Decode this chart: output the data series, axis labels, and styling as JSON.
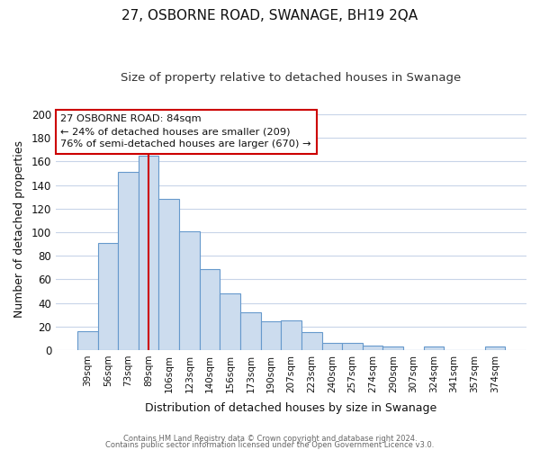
{
  "title": "27, OSBORNE ROAD, SWANAGE, BH19 2QA",
  "subtitle": "Size of property relative to detached houses in Swanage",
  "xlabel": "Distribution of detached houses by size in Swanage",
  "ylabel": "Number of detached properties",
  "bar_labels": [
    "39sqm",
    "56sqm",
    "73sqm",
    "89sqm",
    "106sqm",
    "123sqm",
    "140sqm",
    "156sqm",
    "173sqm",
    "190sqm",
    "207sqm",
    "223sqm",
    "240sqm",
    "257sqm",
    "274sqm",
    "290sqm",
    "307sqm",
    "324sqm",
    "341sqm",
    "357sqm",
    "374sqm"
  ],
  "bar_values": [
    16,
    91,
    151,
    165,
    128,
    101,
    69,
    48,
    32,
    24,
    25,
    15,
    6,
    6,
    4,
    3,
    0,
    3,
    0,
    0,
    3
  ],
  "bar_color": "#ccdcee",
  "bar_edge_color": "#6699cc",
  "vline_x": 3,
  "vline_color": "#cc0000",
  "ylim": [
    0,
    205
  ],
  "yticks": [
    0,
    20,
    40,
    60,
    80,
    100,
    120,
    140,
    160,
    180,
    200
  ],
  "annotation_box_text_line1": "27 OSBORNE ROAD: 84sqm",
  "annotation_box_text_line2": "← 24% of detached houses are smaller (209)",
  "annotation_box_text_line3": "76% of semi-detached houses are larger (670) →",
  "footer_line1": "Contains HM Land Registry data © Crown copyright and database right 2024.",
  "footer_line2": "Contains public sector information licensed under the Open Government Licence v3.0.",
  "background_color": "#ffffff",
  "grid_color": "#c8d4e8",
  "title_fontsize": 11,
  "subtitle_fontsize": 9.5
}
